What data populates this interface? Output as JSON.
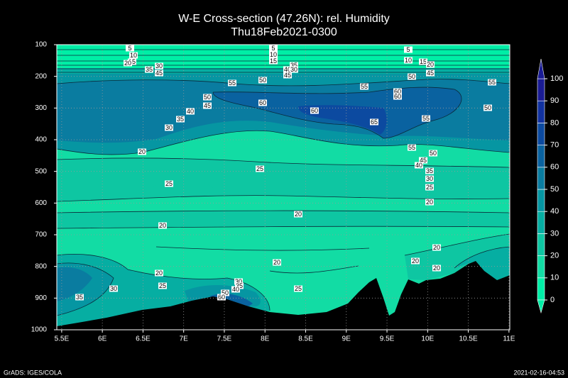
{
  "chart_data": {
    "type": "contour",
    "title": "W-E Cross-section (47.26N): rel. Humidity",
    "subtitle": "Thu18Feb2021-0300",
    "xlim": [
      5.44,
      11.01
    ],
    "xticks": [
      {
        "value": 5.5,
        "label": "5.5E"
      },
      {
        "value": 6,
        "label": "6E"
      },
      {
        "value": 6.5,
        "label": "6.5E"
      },
      {
        "value": 7,
        "label": "7E"
      },
      {
        "value": 7.5,
        "label": "7.5E"
      },
      {
        "value": 8,
        "label": "8E"
      },
      {
        "value": 8.5,
        "label": "8.5E"
      },
      {
        "value": 9,
        "label": "9E"
      },
      {
        "value": 9.5,
        "label": "9.5E"
      },
      {
        "value": 10,
        "label": "10E"
      },
      {
        "value": 10.5,
        "label": "10.5E"
      },
      {
        "value": 11,
        "label": "11E"
      }
    ],
    "ylim": [
      1000,
      100
    ],
    "yticks": [
      100,
      200,
      300,
      400,
      500,
      600,
      700,
      800,
      900,
      1000
    ],
    "grid": true,
    "colorbar": {
      "ticks": [
        0,
        10,
        20,
        30,
        40,
        50,
        60,
        70,
        80,
        90,
        100
      ],
      "colors": [
        "#00eea6",
        "#12dca4",
        "#0ec6a2",
        "#06aea2",
        "#0696a2",
        "#0a7ca0",
        "#0a62a0",
        "#0c4aa0",
        "#1232a0",
        "#1a1c94"
      ]
    },
    "contour_labels": [
      5,
      10,
      15,
      20,
      35,
      30,
      45,
      5,
      10,
      15,
      40,
      35,
      30,
      45,
      50,
      55,
      55,
      60,
      60,
      50,
      5,
      10,
      15,
      20,
      45,
      55,
      50,
      50,
      45,
      60,
      60,
      65,
      55,
      40,
      35,
      30,
      20,
      55,
      45,
      50,
      40,
      35,
      30,
      25,
      20,
      25,
      25,
      20,
      20,
      20,
      20,
      20,
      20,
      20,
      25,
      30,
      35,
      25,
      30,
      35,
      40,
      50,
      60
    ],
    "footer_left": "GrADS: IGES/COLA",
    "footer_right": "2021-02-16-04:53"
  }
}
